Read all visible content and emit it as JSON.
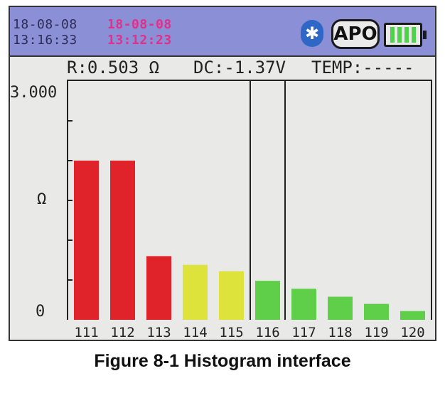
{
  "statusbar": {
    "current_date": "18-08-08",
    "current_time": "13:16:33",
    "record_date": "18-08-08",
    "record_time": "13:12:23",
    "bluetooth_icon": "bluetooth-icon",
    "apo_label": "APO",
    "battery_icon": "battery-icon",
    "colors": {
      "background": "#8a8fd6",
      "record_text": "#e0308a",
      "battery": "#4fd14a"
    }
  },
  "readout": {
    "resistance": "R:0.503 Ω",
    "dc_voltage": "DC:-1.37V",
    "temperature": "TEMP:-----"
  },
  "chart_data": {
    "type": "bar",
    "categories": [
      "111",
      "112",
      "113",
      "114",
      "115",
      "116",
      "117",
      "118",
      "119",
      "120"
    ],
    "values": [
      2.0,
      2.0,
      0.8,
      0.69,
      0.61,
      0.49,
      0.39,
      0.29,
      0.2,
      0.11
    ],
    "bar_colors": [
      "#e0232b",
      "#e0232b",
      "#e0232b",
      "#dde33a",
      "#dde33a",
      "#5fcf4a",
      "#5fcf4a",
      "#5fcf4a",
      "#5fcf4a",
      "#5fcf4a"
    ],
    "selected_category": "116",
    "y_top_label": "3.000",
    "y_bottom_label": "0",
    "y_unit_label": "Ω",
    "ylim": [
      0,
      3
    ],
    "y_ticks": [
      0.5,
      1.0,
      1.5,
      2.0,
      2.5
    ]
  },
  "caption": "Figure 8-1 Histogram interface"
}
